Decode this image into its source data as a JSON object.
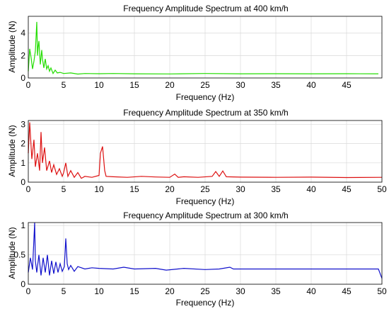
{
  "chart_data": [
    {
      "type": "line",
      "title": "Frequency Amplitude Spectrum at 400 km/h",
      "xlabel": "Frequency (Hz)",
      "ylabel": "Amplitude (N)",
      "xlim": [
        0,
        50
      ],
      "ylim": [
        0,
        5.5
      ],
      "xticks": [
        0,
        5,
        10,
        15,
        20,
        25,
        30,
        35,
        40,
        45
      ],
      "yticks": [
        0,
        2,
        4
      ],
      "grid": true,
      "color": "#22dd00",
      "series": [
        {
          "x": [
            0,
            0.2,
            0.4,
            0.6,
            0.8,
            1.0,
            1.2,
            1.3,
            1.4,
            1.5,
            1.7,
            1.9,
            2.0,
            2.2,
            2.4,
            2.6,
            2.8,
            3.0,
            3.2,
            3.5,
            3.8,
            4.1,
            4.5,
            5,
            6,
            7,
            8,
            10,
            12,
            15,
            20,
            25,
            30,
            35,
            40,
            45,
            49.5
          ],
          "y": [
            0.6,
            2.6,
            1.8,
            0.8,
            1.5,
            2.4,
            5.0,
            2.0,
            2.8,
            3.3,
            1.2,
            2.5,
            1.7,
            0.9,
            1.7,
            0.8,
            1.1,
            0.6,
            0.9,
            0.4,
            0.7,
            0.45,
            0.5,
            0.4,
            0.45,
            0.35,
            0.4,
            0.38,
            0.4,
            0.37,
            0.36,
            0.4,
            0.37,
            0.38,
            0.37,
            0.38,
            0.37
          ]
        }
      ]
    },
    {
      "type": "line",
      "title": "Frequency Amplitude Spectrum at 350 km/h",
      "xlabel": "Frequency (Hz)",
      "ylabel": "Amplitude (N)",
      "xlim": [
        0,
        50
      ],
      "ylim": [
        0,
        3.2
      ],
      "xticks": [
        0,
        5,
        10,
        15,
        20,
        25,
        30,
        35,
        40,
        45,
        50
      ],
      "yticks": [
        0,
        1,
        2,
        3
      ],
      "grid": true,
      "color": "#dd1111",
      "series": [
        {
          "x": [
            0,
            0.2,
            0.5,
            0.8,
            1.0,
            1.3,
            1.6,
            1.8,
            2.0,
            2.3,
            2.6,
            3.0,
            3.3,
            3.6,
            4.0,
            4.4,
            4.8,
            5.0,
            5.3,
            5.6,
            6.0,
            6.5,
            7.0,
            7.5,
            8,
            9,
            10,
            10.2,
            10.5,
            10.8,
            11,
            12,
            14,
            16,
            18,
            20,
            20.7,
            21.2,
            22,
            24,
            26,
            26.5,
            27,
            27.5,
            28,
            30,
            35,
            40,
            45,
            50
          ],
          "y": [
            1.5,
            3.1,
            1.2,
            2.2,
            0.8,
            1.5,
            0.6,
            2.6,
            1.0,
            1.8,
            0.6,
            1.1,
            0.5,
            0.9,
            0.4,
            0.7,
            0.3,
            0.5,
            1.0,
            0.3,
            0.6,
            0.25,
            0.5,
            0.2,
            0.3,
            0.25,
            0.35,
            1.5,
            1.85,
            0.6,
            0.3,
            0.28,
            0.25,
            0.3,
            0.27,
            0.25,
            0.42,
            0.25,
            0.28,
            0.25,
            0.3,
            0.55,
            0.3,
            0.58,
            0.28,
            0.26,
            0.25,
            0.26,
            0.24,
            0.25
          ]
        }
      ]
    },
    {
      "type": "line",
      "title": "Frequency Amplitude Spectrum at 300 km/h",
      "xlabel": "Frequency (Hz)",
      "ylabel": "Amplitude (N)",
      "xlim": [
        0,
        50
      ],
      "ylim": [
        0,
        1.05
      ],
      "xticks": [
        0,
        5,
        10,
        15,
        20,
        25,
        30,
        35,
        40,
        45,
        50
      ],
      "yticks": [
        0,
        0.5,
        1
      ],
      "grid": true,
      "color": "#1111cc",
      "series": [
        {
          "x": [
            0,
            0.3,
            0.6,
            0.9,
            1.0,
            1.2,
            1.5,
            1.8,
            2.1,
            2.4,
            2.7,
            3.0,
            3.3,
            3.6,
            3.9,
            4.2,
            4.5,
            4.8,
            5.1,
            5.3,
            5.5,
            5.7,
            6.0,
            6.5,
            7,
            8,
            9,
            10,
            12,
            13.5,
            15,
            18,
            19.5,
            22,
            25,
            27,
            28.5,
            29,
            32,
            35,
            40,
            45,
            49.5,
            50
          ],
          "y": [
            0.2,
            0.45,
            0.25,
            1.05,
            0.4,
            0.2,
            0.5,
            0.15,
            0.45,
            0.2,
            0.5,
            0.15,
            0.4,
            0.18,
            0.38,
            0.2,
            0.35,
            0.22,
            0.3,
            0.78,
            0.35,
            0.25,
            0.32,
            0.22,
            0.3,
            0.26,
            0.28,
            0.27,
            0.26,
            0.29,
            0.26,
            0.27,
            0.24,
            0.27,
            0.25,
            0.26,
            0.29,
            0.26,
            0.26,
            0.26,
            0.26,
            0.26,
            0.26,
            0.1
          ]
        }
      ]
    }
  ]
}
